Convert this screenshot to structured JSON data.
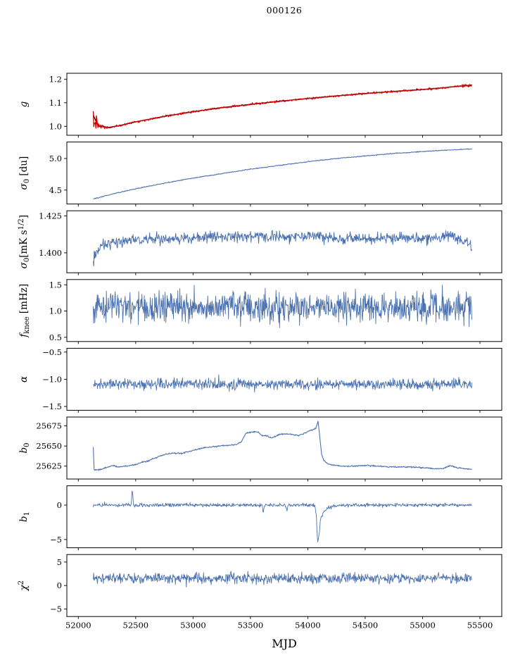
{
  "title": "000126",
  "xlabel": "MJD",
  "colors": {
    "series_blue": "#4c72b0",
    "model_black": "#1a1a1a",
    "data_red": "#d40000",
    "axis": "#000000"
  },
  "chart_data": {
    "type": "line",
    "title": "000126",
    "xlabel": "MJD",
    "xlim": [
      51900,
      55690
    ],
    "data_xrange": [
      52130,
      55430
    ],
    "xticks": [
      52000,
      52500,
      53000,
      53500,
      54000,
      54500,
      55000,
      55500
    ],
    "xtick_labels": [
      "52000",
      "52500",
      "53000",
      "53500",
      "54000",
      "54500",
      "55000",
      "55500"
    ],
    "panels": [
      {
        "id": "g",
        "ylabel_segments": [
          [
            "i",
            "g"
          ]
        ],
        "ylim": [
          0.962,
          1.225
        ],
        "yticks": [
          1.0,
          1.1,
          1.2
        ],
        "ytick_labels": [
          "1.0",
          "1.1",
          "1.2"
        ],
        "series": [
          {
            "name": "gain-model",
            "color": "#1a1a1a",
            "width": 1.5,
            "n": 400,
            "noise": 0,
            "trend": [
              [
                52130,
                1.048
              ],
              [
                52170,
                1.003
              ],
              [
                52260,
                0.995
              ],
              [
                52350,
                1.002
              ],
              [
                52500,
                1.019
              ],
              [
                52750,
                1.042
              ],
              [
                53000,
                1.062
              ],
              [
                53250,
                1.079
              ],
              [
                53500,
                1.093
              ],
              [
                53750,
                1.106
              ],
              [
                54000,
                1.118
              ],
              [
                54250,
                1.129
              ],
              [
                54500,
                1.139
              ],
              [
                54750,
                1.148
              ],
              [
                55000,
                1.156
              ],
              [
                55150,
                1.162
              ],
              [
                55300,
                1.169
              ],
              [
                55430,
                1.175
              ]
            ]
          },
          {
            "name": "gain-data",
            "color": "#d40000",
            "width": 1.3,
            "n": 720,
            "noise": 0.0035,
            "noise_profile": [
              [
                52130,
                0.024
              ],
              [
                52200,
                0.008
              ],
              [
                52320,
                0.0035
              ],
              [
                55300,
                0.0035
              ],
              [
                55430,
                0.006
              ]
            ],
            "trend": [
              [
                52130,
                1.03
              ],
              [
                52170,
                1.004
              ],
              [
                52260,
                0.996
              ],
              [
                52350,
                1.002
              ],
              [
                52500,
                1.019
              ],
              [
                52750,
                1.042
              ],
              [
                53000,
                1.062
              ],
              [
                53250,
                1.079
              ],
              [
                53500,
                1.093
              ],
              [
                53750,
                1.106
              ],
              [
                54000,
                1.118
              ],
              [
                54250,
                1.129
              ],
              [
                54500,
                1.139
              ],
              [
                54750,
                1.148
              ],
              [
                55000,
                1.156
              ],
              [
                55150,
                1.162
              ],
              [
                55300,
                1.169
              ],
              [
                55430,
                1.174
              ]
            ]
          }
        ]
      },
      {
        "id": "sigma0-du",
        "ylabel_segments": [
          [
            "i",
            "σ"
          ],
          [
            "sub",
            "0"
          ],
          [
            "n",
            " [du]"
          ]
        ],
        "ylim": [
          4.28,
          5.26
        ],
        "yticks": [
          4.5,
          5.0
        ],
        "ytick_labels": [
          "4.5",
          "5.0"
        ],
        "series": [
          {
            "name": "sigma0-du",
            "color": "#4c72b0",
            "width": 1.1,
            "n": 700,
            "noise": 0.006,
            "trend": [
              [
                52130,
                4.36
              ],
              [
                52160,
                4.37
              ],
              [
                52300,
                4.44
              ],
              [
                52500,
                4.52
              ],
              [
                52750,
                4.61
              ],
              [
                53000,
                4.69
              ],
              [
                53250,
                4.76
              ],
              [
                53500,
                4.83
              ],
              [
                53750,
                4.89
              ],
              [
                54000,
                4.95
              ],
              [
                54250,
                5.0
              ],
              [
                54500,
                5.04
              ],
              [
                54750,
                5.08
              ],
              [
                55000,
                5.11
              ],
              [
                55200,
                5.13
              ],
              [
                55430,
                5.15
              ]
            ]
          }
        ]
      },
      {
        "id": "sigma0-mks",
        "ylabel_segments": [
          [
            "i",
            "σ"
          ],
          [
            "sub",
            "0"
          ],
          [
            "n",
            "[mK s"
          ],
          [
            "sup",
            "1/2"
          ],
          [
            "n",
            "]"
          ]
        ],
        "ylim": [
          1.3865,
          1.4285
        ],
        "yticks": [
          1.4,
          1.425
        ],
        "ytick_labels": [
          "1.400",
          "1.425"
        ],
        "series": [
          {
            "name": "sigma0-mks",
            "color": "#4c72b0",
            "width": 1.0,
            "n": 800,
            "noise": 0.0032,
            "trend": [
              [
                52130,
                1.394
              ],
              [
                52200,
                1.406
              ],
              [
                52400,
                1.408
              ],
              [
                52700,
                1.409
              ],
              [
                53000,
                1.41
              ],
              [
                53300,
                1.411
              ],
              [
                53600,
                1.411
              ],
              [
                54000,
                1.411
              ],
              [
                54300,
                1.41
              ],
              [
                54700,
                1.41
              ],
              [
                55000,
                1.41
              ],
              [
                55250,
                1.411
              ],
              [
                55380,
                1.407
              ],
              [
                55430,
                1.403
              ]
            ]
          }
        ]
      },
      {
        "id": "fknee",
        "ylabel_segments": [
          [
            "i",
            "f"
          ],
          [
            "sub",
            "knee"
          ],
          [
            "n",
            " [mHz]"
          ]
        ],
        "ylim": [
          0.42,
          1.6
        ],
        "yticks": [
          0.5,
          1.0,
          1.5
        ],
        "ytick_labels": [
          "0.5",
          "1.0",
          "1.5"
        ],
        "series": [
          {
            "name": "fknee",
            "color": "#4c72b0",
            "width": 0.9,
            "n": 950,
            "noise": 0.24,
            "trend": [
              [
                52130,
                1.07
              ],
              [
                55430,
                1.07
              ]
            ]
          }
        ]
      },
      {
        "id": "alpha",
        "ylabel_segments": [
          [
            "i",
            "α"
          ]
        ],
        "ylim": [
          -1.57,
          -0.43
        ],
        "yticks": [
          -1.5,
          -1.0,
          -0.5
        ],
        "ytick_labels": [
          "−1.5",
          "−1.0",
          "−0.5"
        ],
        "series": [
          {
            "name": "alpha",
            "color": "#4c72b0",
            "width": 0.9,
            "n": 900,
            "noise": 0.085,
            "trend": [
              [
                52130,
                -1.09
              ],
              [
                55430,
                -1.09
              ]
            ]
          }
        ]
      },
      {
        "id": "b0",
        "ylabel_segments": [
          [
            "i",
            "b"
          ],
          [
            "sub",
            "0"
          ]
        ],
        "ylim": [
          25609,
          25686
        ],
        "yticks": [
          25625,
          25650,
          25675
        ],
        "ytick_labels": [
          "25625",
          "25650",
          "25675"
        ],
        "series": [
          {
            "name": "b0",
            "color": "#4c72b0",
            "width": 1.1,
            "n": 850,
            "noise": 0.7,
            "trend": [
              [
                52130,
                25649
              ],
              [
                52138,
                25620
              ],
              [
                52200,
                25621
              ],
              [
                52260,
                25624
              ],
              [
                52300,
                25626
              ],
              [
                52340,
                25624
              ],
              [
                52420,
                25625
              ],
              [
                52500,
                25627
              ],
              [
                52560,
                25630
              ],
              [
                52620,
                25632
              ],
              [
                52700,
                25637
              ],
              [
                52760,
                25640
              ],
              [
                52820,
                25641
              ],
              [
                52900,
                25641
              ],
              [
                52960,
                25643
              ],
              [
                53040,
                25646
              ],
              [
                53100,
                25648
              ],
              [
                53160,
                25649
              ],
              [
                53240,
                25650
              ],
              [
                53320,
                25651
              ],
              [
                53380,
                25652
              ],
              [
                53420,
                25655
              ],
              [
                53460,
                25666
              ],
              [
                53500,
                25667
              ],
              [
                53560,
                25668
              ],
              [
                53600,
                25663
              ],
              [
                53640,
                25663
              ],
              [
                53680,
                25660
              ],
              [
                53720,
                25662
              ],
              [
                53760,
                25665
              ],
              [
                53820,
                25665
              ],
              [
                53880,
                25664
              ],
              [
                53920,
                25663
              ],
              [
                53960,
                25665
              ],
              [
                54000,
                25668
              ],
              [
                54040,
                25670
              ],
              [
                54070,
                25672
              ],
              [
                54090,
                25681
              ],
              [
                54105,
                25660
              ],
              [
                54120,
                25640
              ],
              [
                54140,
                25632
              ],
              [
                54170,
                25628
              ],
              [
                54220,
                25626
              ],
              [
                54300,
                25625
              ],
              [
                54400,
                25625
              ],
              [
                54500,
                25626
              ],
              [
                54600,
                25625
              ],
              [
                54700,
                25624
              ],
              [
                54800,
                25624
              ],
              [
                54900,
                25624
              ],
              [
                55000,
                25623
              ],
              [
                55100,
                25622
              ],
              [
                55180,
                25622
              ],
              [
                55240,
                25626
              ],
              [
                55300,
                25623
              ],
              [
                55360,
                25622
              ],
              [
                55430,
                25621
              ]
            ]
          }
        ]
      },
      {
        "id": "b1",
        "ylabel_segments": [
          [
            "i",
            "b"
          ],
          [
            "sub",
            "1"
          ]
        ],
        "ylim": [
          -6.2,
          2.8
        ],
        "yticks": [
          -5,
          0
        ],
        "ytick_labels": [
          "−5",
          "0"
        ],
        "series": [
          {
            "name": "b1",
            "color": "#4c72b0",
            "width": 0.9,
            "n": 900,
            "noise": 0.22,
            "trend": [
              [
                52130,
                0
              ],
              [
                52460,
                0
              ],
              [
                52470,
                2.3
              ],
              [
                52482,
                0
              ],
              [
                53600,
                0
              ],
              [
                53612,
                -1.2
              ],
              [
                53624,
                0
              ],
              [
                53808,
                0
              ],
              [
                53818,
                -0.9
              ],
              [
                53828,
                0
              ],
              [
                54060,
                0
              ],
              [
                54075,
                -1.6
              ],
              [
                54085,
                -5.6
              ],
              [
                54098,
                -4.3
              ],
              [
                54110,
                -2.1
              ],
              [
                54140,
                -0.9
              ],
              [
                54180,
                -0.4
              ],
              [
                54260,
                -0.1
              ],
              [
                54340,
                0
              ],
              [
                55430,
                0
              ]
            ]
          }
        ]
      },
      {
        "id": "chi2",
        "ylabel_segments": [
          [
            "i",
            "χ"
          ],
          [
            "sup",
            "2"
          ]
        ],
        "ylim": [
          -6.6,
          6.6
        ],
        "yticks": [
          -5,
          0,
          5
        ],
        "ytick_labels": [
          "−5",
          "0",
          "5"
        ],
        "series": [
          {
            "name": "chi2",
            "color": "#4c72b0",
            "width": 0.9,
            "n": 900,
            "noise": 0.92,
            "trend": [
              [
                52130,
                1.55
              ],
              [
                55430,
                1.55
              ]
            ]
          }
        ]
      }
    ]
  }
}
